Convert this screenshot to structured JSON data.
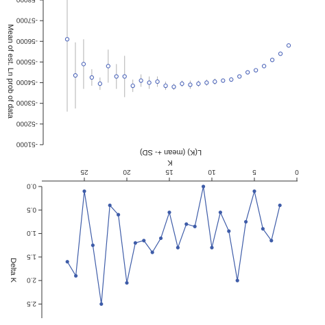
{
  "orientation": "rotated-180",
  "colors": {
    "open_marker": "#4a63b8",
    "error_bar": "#b0b0b0",
    "line": "#3e5ca8",
    "axis": "#333333"
  },
  "chart_data": [
    {
      "type": "scatter",
      "title": "",
      "xlabel": "L(K) (mean +- SD)",
      "ylabel": "Mean of est. Ln prob of data",
      "ylim": [
        -51000,
        -58000
      ],
      "y_ticks": [
        "-58000",
        "-57000",
        "-56000",
        "-55000",
        "-54000",
        "-53000",
        "-52000",
        "-51000"
      ],
      "x": [
        1,
        2,
        3,
        4,
        5,
        6,
        7,
        8,
        9,
        10,
        11,
        12,
        13,
        14,
        15,
        16,
        17,
        18,
        19,
        20,
        21,
        22,
        23,
        24,
        25,
        26,
        27,
        28
      ],
      "values": [
        -55800,
        -55400,
        -55100,
        -54800,
        -54600,
        -54500,
        -54300,
        -54150,
        -54100,
        -54050,
        -54000,
        -53950,
        -53900,
        -53950,
        -53800,
        -53850,
        -54050,
        -54000,
        -54100,
        -53850,
        -54300,
        -54300,
        -54800,
        -53950,
        -54250,
        -54900,
        -54350,
        -56100
      ],
      "sd": [
        0,
        0,
        0,
        0,
        0,
        0,
        0,
        50,
        100,
        150,
        150,
        150,
        200,
        150,
        150,
        200,
        250,
        300,
        300,
        300,
        1000,
        600,
        800,
        300,
        400,
        1200,
        1600,
        3500
      ],
      "marker": "open-circle"
    },
    {
      "type": "line",
      "title": "",
      "xlabel": "K",
      "ylabel": "Delta K",
      "x_ticks": [
        "0",
        "5",
        "10",
        "15",
        "20",
        "25"
      ],
      "y_ticks": [
        "0.0",
        "0.5",
        "1.0",
        "1.5",
        "2.0",
        "2.5"
      ],
      "xlim": [
        0,
        30
      ],
      "ylim": [
        0,
        2.8
      ],
      "x": [
        2,
        3,
        4,
        5,
        6,
        7,
        8,
        9,
        10,
        11,
        12,
        13,
        14,
        15,
        16,
        17,
        18,
        19,
        20,
        21,
        22,
        23,
        24,
        25,
        26,
        27
      ],
      "values": [
        0.4,
        1.15,
        0.9,
        0.1,
        0.75,
        2.0,
        0.95,
        0.55,
        1.3,
        0.0,
        0.85,
        0.8,
        1.3,
        0.55,
        1.1,
        1.4,
        1.15,
        1.2,
        2.05,
        0.6,
        0.4,
        2.5,
        1.25,
        0.1,
        1.9,
        1.6
      ],
      "marker": "filled-circle"
    }
  ]
}
